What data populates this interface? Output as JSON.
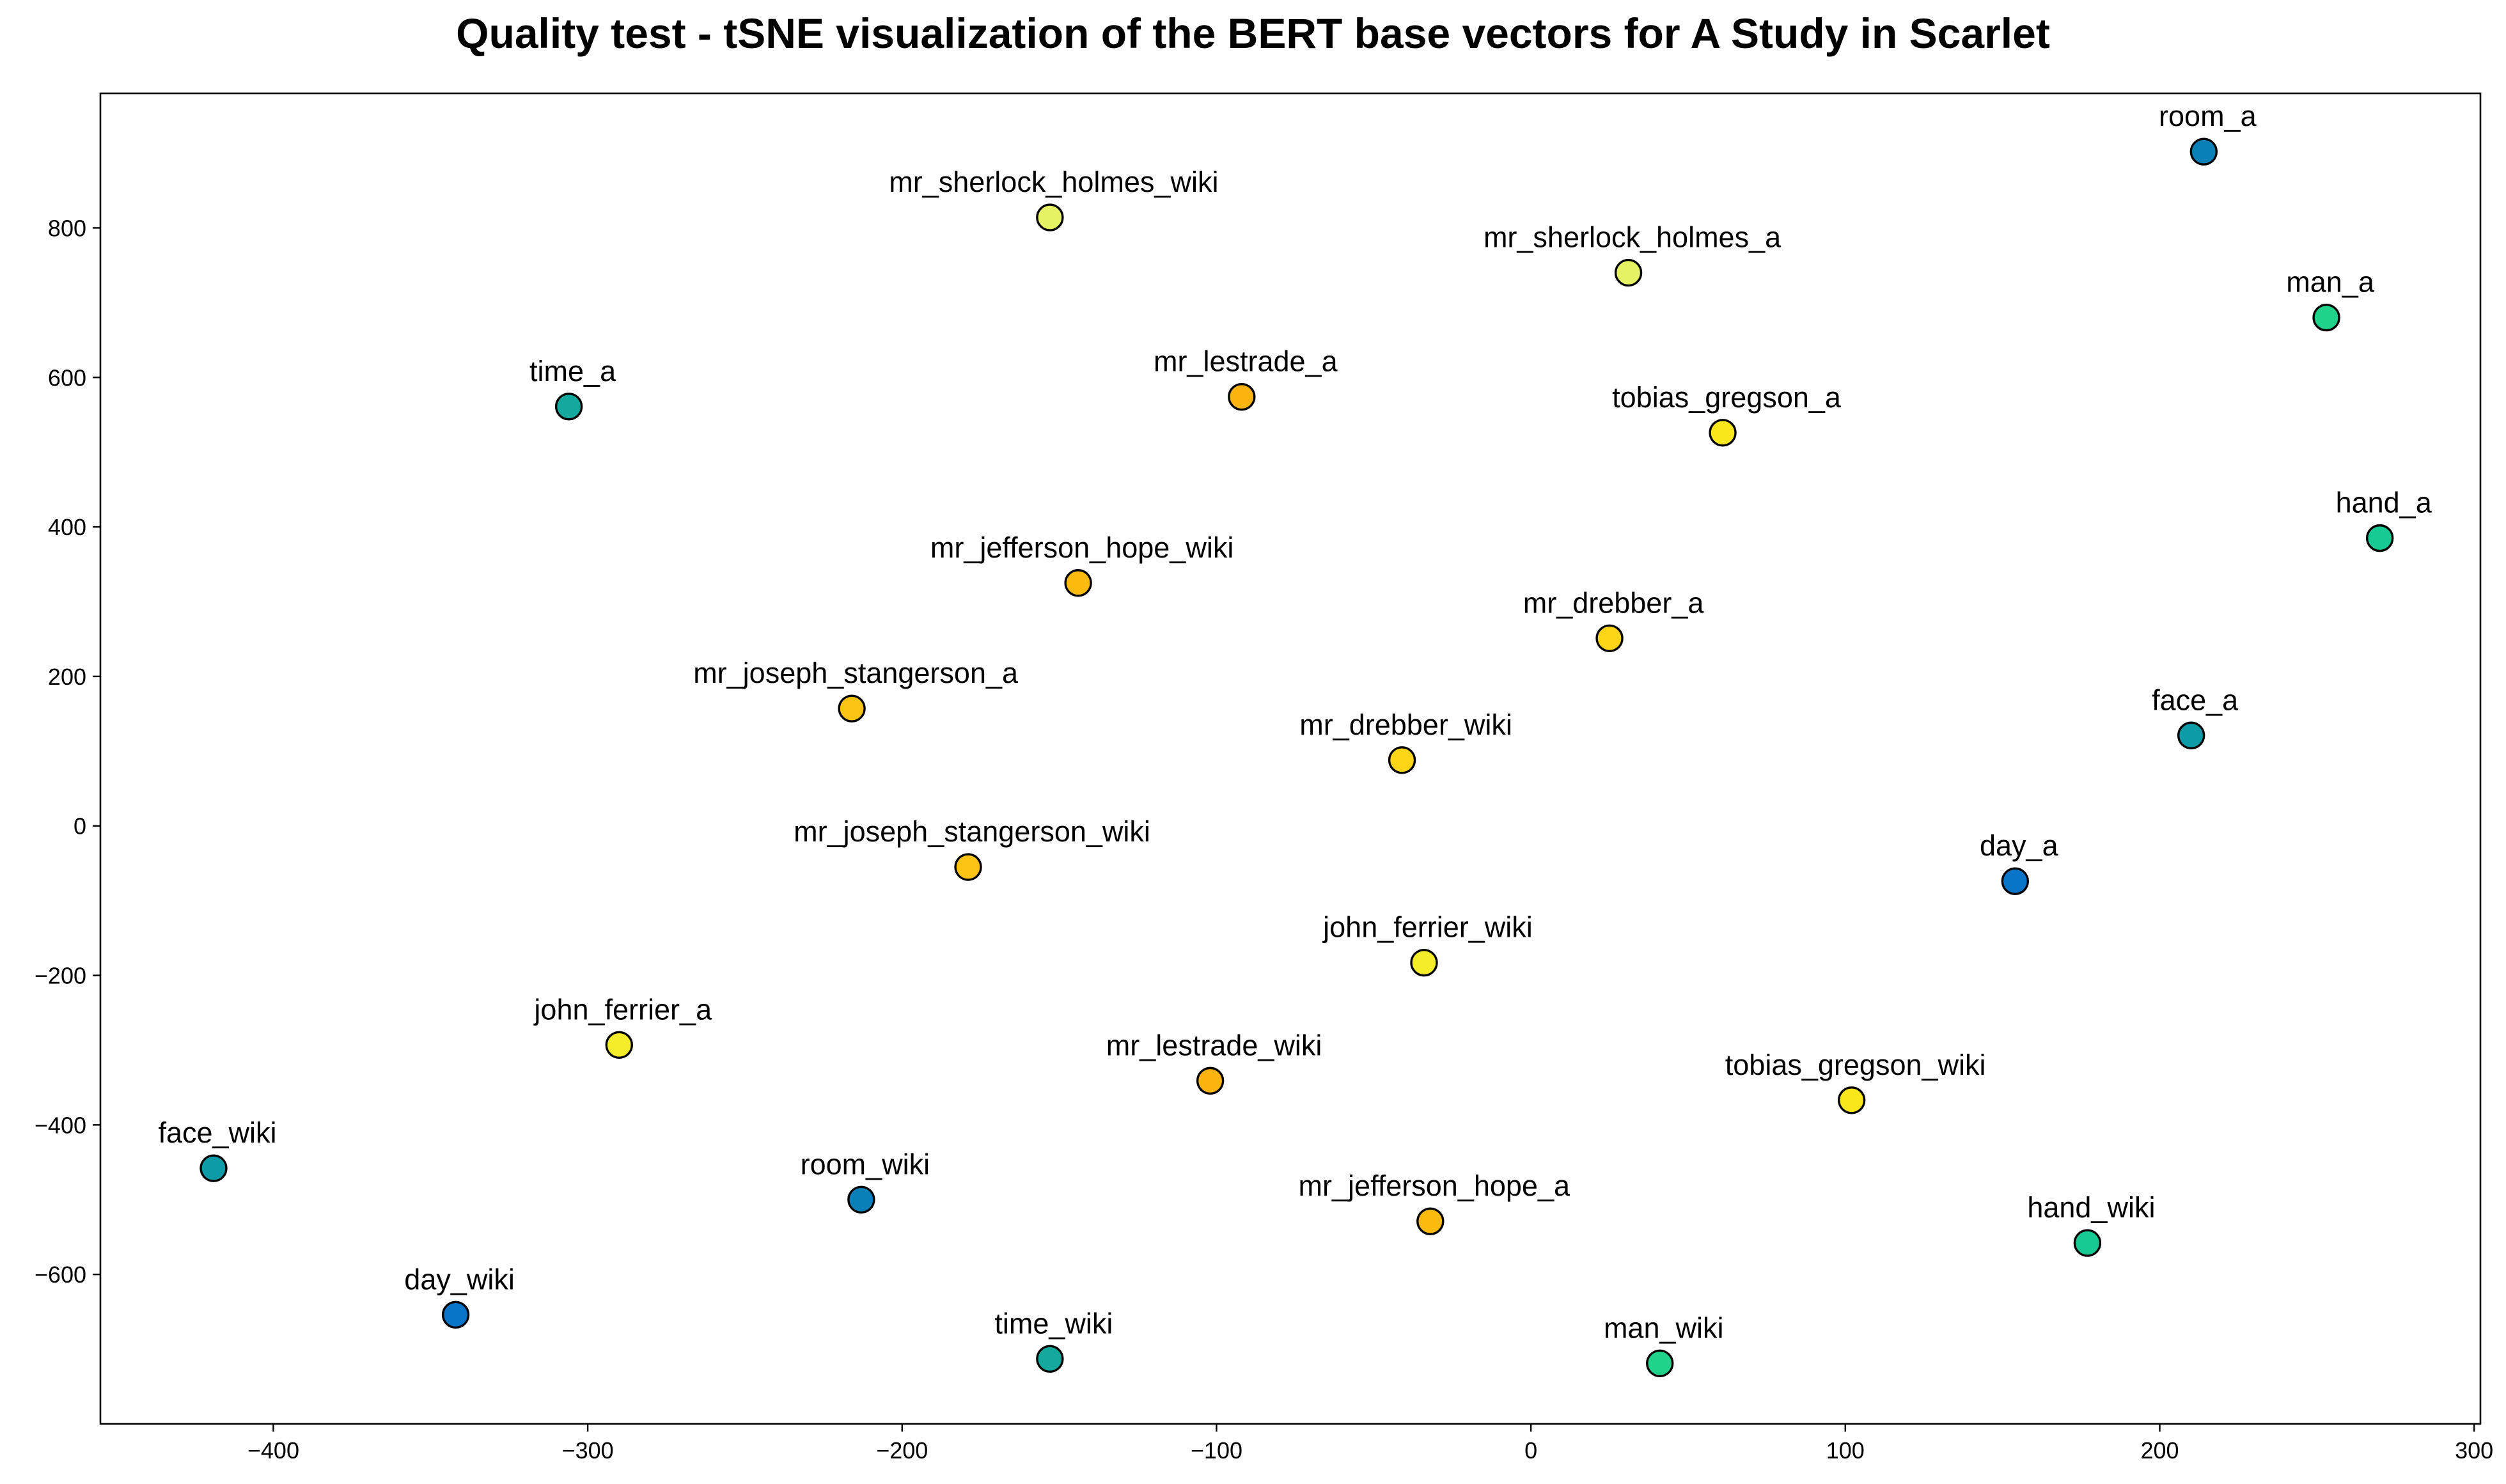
{
  "chart_data": {
    "type": "scatter",
    "title": "Quality test - tSNE visualization of the BERT base vectors for A Study in Scarlet",
    "xlabel": "",
    "ylabel": "",
    "xlim": [
      -455,
      302
    ],
    "ylim": [
      -800,
      980
    ],
    "xticks": [
      -400,
      -300,
      -200,
      -100,
      0,
      100,
      200,
      300
    ],
    "yticks": [
      -600,
      -400,
      -200,
      0,
      200,
      400,
      600,
      800
    ],
    "xtick_labels": [
      "−400",
      "−300",
      "−200",
      "−100",
      "0",
      "100",
      "200",
      "300"
    ],
    "ytick_labels": [
      "−600",
      "−400",
      "−200",
      "0",
      "200",
      "400",
      "600",
      "800"
    ],
    "grid": false,
    "legend": false,
    "points": [
      {
        "label": "room_a",
        "x": 214,
        "y": 902,
        "color": "#0a80b9"
      },
      {
        "label": "mr_sherlock_holmes_wiki",
        "x": -153,
        "y": 814,
        "color": "#e5f264"
      },
      {
        "label": "mr_sherlock_holmes_a",
        "x": 31,
        "y": 740,
        "color": "#e5f264"
      },
      {
        "label": "man_a",
        "x": 253,
        "y": 680,
        "color": "#1fd38b"
      },
      {
        "label": "time_a",
        "x": -306,
        "y": 561,
        "color": "#13aa9d"
      },
      {
        "label": "mr_lestrade_a",
        "x": -92,
        "y": 574,
        "color": "#fbb30f"
      },
      {
        "label": "tobias_gregson_a",
        "x": 61,
        "y": 526,
        "color": "#f9e71c"
      },
      {
        "label": "hand_a",
        "x": 270,
        "y": 385,
        "color": "#17c993"
      },
      {
        "label": "mr_jefferson_hope_wiki",
        "x": -144,
        "y": 325,
        "color": "#fbbb0e"
      },
      {
        "label": "mr_drebber_a",
        "x": 25,
        "y": 251,
        "color": "#fbd516"
      },
      {
        "label": "mr_joseph_stangerson_a",
        "x": -216,
        "y": 157,
        "color": "#fbc412"
      },
      {
        "label": "face_a",
        "x": 210,
        "y": 121,
        "color": "#0d9ba8"
      },
      {
        "label": "mr_drebber_wiki",
        "x": -41,
        "y": 88,
        "color": "#fbd516"
      },
      {
        "label": "mr_joseph_stangerson_wiki",
        "x": -179,
        "y": -55,
        "color": "#fbc412"
      },
      {
        "label": "day_a",
        "x": 154,
        "y": -74,
        "color": "#0774c7"
      },
      {
        "label": "john_ferrier_wiki",
        "x": -34,
        "y": -183,
        "color": "#f5ec2a"
      },
      {
        "label": "john_ferrier_a",
        "x": -290,
        "y": -293,
        "color": "#f5ec2a"
      },
      {
        "label": "mr_lestrade_wiki",
        "x": -102,
        "y": -341,
        "color": "#fbb30f"
      },
      {
        "label": "tobias_gregson_wiki",
        "x": 102,
        "y": -367,
        "color": "#f9e71c"
      },
      {
        "label": "face_wiki",
        "x": -419,
        "y": -458,
        "color": "#0d9ba8"
      },
      {
        "label": "room_wiki",
        "x": -213,
        "y": -500,
        "color": "#0a80b9"
      },
      {
        "label": "mr_jefferson_hope_a",
        "x": -32,
        "y": -529,
        "color": "#fbbb0e"
      },
      {
        "label": "hand_wiki",
        "x": 177,
        "y": -558,
        "color": "#17c993"
      },
      {
        "label": "day_wiki",
        "x": -342,
        "y": -654,
        "color": "#0774c7"
      },
      {
        "label": "time_wiki",
        "x": -153,
        "y": -713,
        "color": "#13aa9d"
      },
      {
        "label": "man_wiki",
        "x": 41,
        "y": -719,
        "color": "#1fd38b"
      }
    ]
  }
}
